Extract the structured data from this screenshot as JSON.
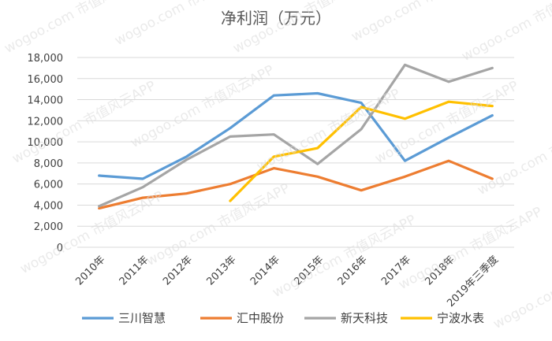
{
  "watermark": "wogoo.com 市值风云APP",
  "chart_data": {
    "type": "line",
    "title": "净利润（万元）",
    "xlabel": "",
    "ylabel": "",
    "categories": [
      "2010年",
      "2011年",
      "2012年",
      "2013年",
      "2014年",
      "2015年",
      "2016年",
      "2017年",
      "2018年",
      "2019年三季度"
    ],
    "ylim": [
      0,
      18000
    ],
    "yticks": [
      0,
      2000,
      4000,
      6000,
      8000,
      10000,
      12000,
      14000,
      16000,
      18000
    ],
    "ytick_labels": [
      "0",
      "2,000",
      "4,000",
      "6,000",
      "8,000",
      "10,000",
      "12,000",
      "14,000",
      "16,000",
      "18,000"
    ],
    "grid": true,
    "legend_position": "bottom",
    "series": [
      {
        "name": "三川智慧",
        "color": "#5B9BD5",
        "values": [
          6800,
          6500,
          8600,
          11300,
          14400,
          14600,
          13700,
          8200,
          10400,
          12500
        ]
      },
      {
        "name": "汇中股份",
        "color": "#ED7D31",
        "values": [
          3700,
          4700,
          5100,
          6000,
          7500,
          6700,
          5400,
          6700,
          8200,
          6500
        ]
      },
      {
        "name": "新天科技",
        "color": "#A5A5A5",
        "values": [
          3900,
          5700,
          8300,
          10500,
          10700,
          7900,
          11200,
          17300,
          15700,
          17000
        ]
      },
      {
        "name": "宁波水表",
        "color": "#FFC000",
        "values": [
          null,
          null,
          null,
          4400,
          8600,
          9400,
          13300,
          12200,
          13800,
          13400
        ]
      }
    ]
  }
}
